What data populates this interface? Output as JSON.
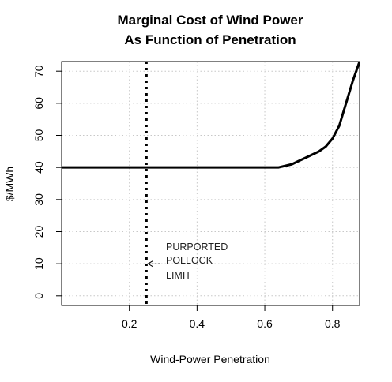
{
  "chart_data": {
    "type": "line",
    "title_lines": [
      "Marginal Cost of Wind Power",
      "As Function of Penetration"
    ],
    "xlabel": "Wind-Power Penetration",
    "ylabel": "$/MWh",
    "xlim": [
      0.0,
      0.88
    ],
    "ylim": [
      -3,
      73
    ],
    "x_ticks": [
      0.2,
      0.4,
      0.6,
      0.8
    ],
    "x_tick_labels": [
      "0.2",
      "0.4",
      "0.6",
      "0.8"
    ],
    "y_ticks": [
      0,
      10,
      20,
      30,
      40,
      50,
      60,
      70
    ],
    "y_tick_labels": [
      "0",
      "10",
      "20",
      "30",
      "40",
      "50",
      "60",
      "70"
    ],
    "grid": true,
    "series": [
      {
        "x": [
          0.0,
          0.1,
          0.2,
          0.3,
          0.4,
          0.5,
          0.6,
          0.64,
          0.68,
          0.72,
          0.76,
          0.78,
          0.8,
          0.82,
          0.84,
          0.86,
          0.88
        ],
        "y": [
          40,
          40,
          40,
          40,
          40,
          40,
          40,
          40,
          41,
          43,
          45,
          46.5,
          49,
          53,
          60,
          67,
          73
        ],
        "color": "#000000"
      }
    ],
    "vertical_line": {
      "x": 0.25,
      "style": "dotted",
      "color": "#000000"
    },
    "annotation": {
      "lines": [
        "PURPORTED",
        "POLLOCK",
        "LIMIT"
      ],
      "arrow_from": [
        0.29,
        10
      ],
      "arrow_to": [
        0.255,
        10
      ]
    }
  }
}
